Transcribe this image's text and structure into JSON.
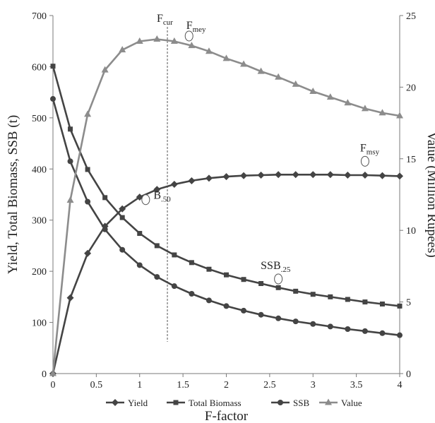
{
  "chart_data": {
    "type": "line",
    "title": "",
    "xlabel": "F-factor",
    "ylabel_left": "Yield, Total Biomass, SSB (t)",
    "ylabel_right": "Value (Million Rupees)",
    "xlim": [
      0,
      4
    ],
    "ylim_left": [
      0,
      700
    ],
    "ylim_right": [
      0,
      25
    ],
    "x_ticks": [
      "0",
      "0.5",
      "1",
      "1.5",
      "2",
      "2.5",
      "3",
      "3.5",
      "4"
    ],
    "y_ticks_left": [
      "0",
      "100",
      "200",
      "300",
      "400",
      "500",
      "600",
      "700"
    ],
    "y_ticks_right": [
      "0",
      "5",
      "10",
      "15",
      "20",
      "25"
    ],
    "grid": false,
    "legend_position": "bottom",
    "x": [
      0,
      0.2,
      0.4,
      0.6,
      0.8,
      1.0,
      1.2,
      1.4,
      1.6,
      1.8,
      2.0,
      2.2,
      2.4,
      2.6,
      2.8,
      3.0,
      3.2,
      3.4,
      3.6,
      3.8,
      4.0
    ],
    "series": [
      {
        "name": "Yield",
        "axis": "left",
        "marker": "diamond",
        "color": "#444444",
        "values": [
          0,
          148,
          235,
          288,
          322,
          345,
          360,
          370,
          377,
          382,
          385,
          387,
          388,
          389,
          389,
          389,
          389,
          388,
          388,
          387,
          386
        ]
      },
      {
        "name": "Total Biomass",
        "axis": "left",
        "marker": "square",
        "color": "#444444",
        "values": [
          601,
          478,
          399,
          344,
          305,
          274,
          250,
          232,
          217,
          204,
          193,
          184,
          176,
          168,
          161,
          155,
          150,
          145,
          140,
          136,
          132
        ]
      },
      {
        "name": "SSB",
        "axis": "left",
        "marker": "circle",
        "color": "#444444",
        "values": [
          537,
          415,
          336,
          282,
          242,
          212,
          189,
          171,
          156,
          143,
          132,
          123,
          115,
          108,
          102,
          97,
          92,
          87,
          83,
          79,
          75
        ]
      },
      {
        "name": "Value",
        "axis": "right",
        "marker": "triangle",
        "color": "#8c8c8c",
        "values": [
          0,
          12.1,
          18.1,
          21.2,
          22.6,
          23.2,
          23.35,
          23.2,
          22.9,
          22.5,
          22.0,
          21.6,
          21.1,
          20.7,
          20.2,
          19.7,
          19.3,
          18.9,
          18.5,
          18.2,
          18.0
        ]
      }
    ],
    "reference_line": {
      "label": "F",
      "sub": "cur",
      "x": 1.32
    },
    "annotations": [
      {
        "label": "F",
        "sub": "mey",
        "x": 1.57,
        "y": 660,
        "label_side": "above-right"
      },
      {
        "label": "F",
        "sub": "msy",
        "x": 3.6,
        "y": 415,
        "label_side": "above"
      },
      {
        "label": "B",
        "sub": ".50",
        "x": 1.07,
        "y": 340,
        "label_side": "right"
      },
      {
        "label": "SSB",
        "sub": ".25",
        "x": 2.6,
        "y": 185,
        "label_side": "above"
      }
    ]
  }
}
